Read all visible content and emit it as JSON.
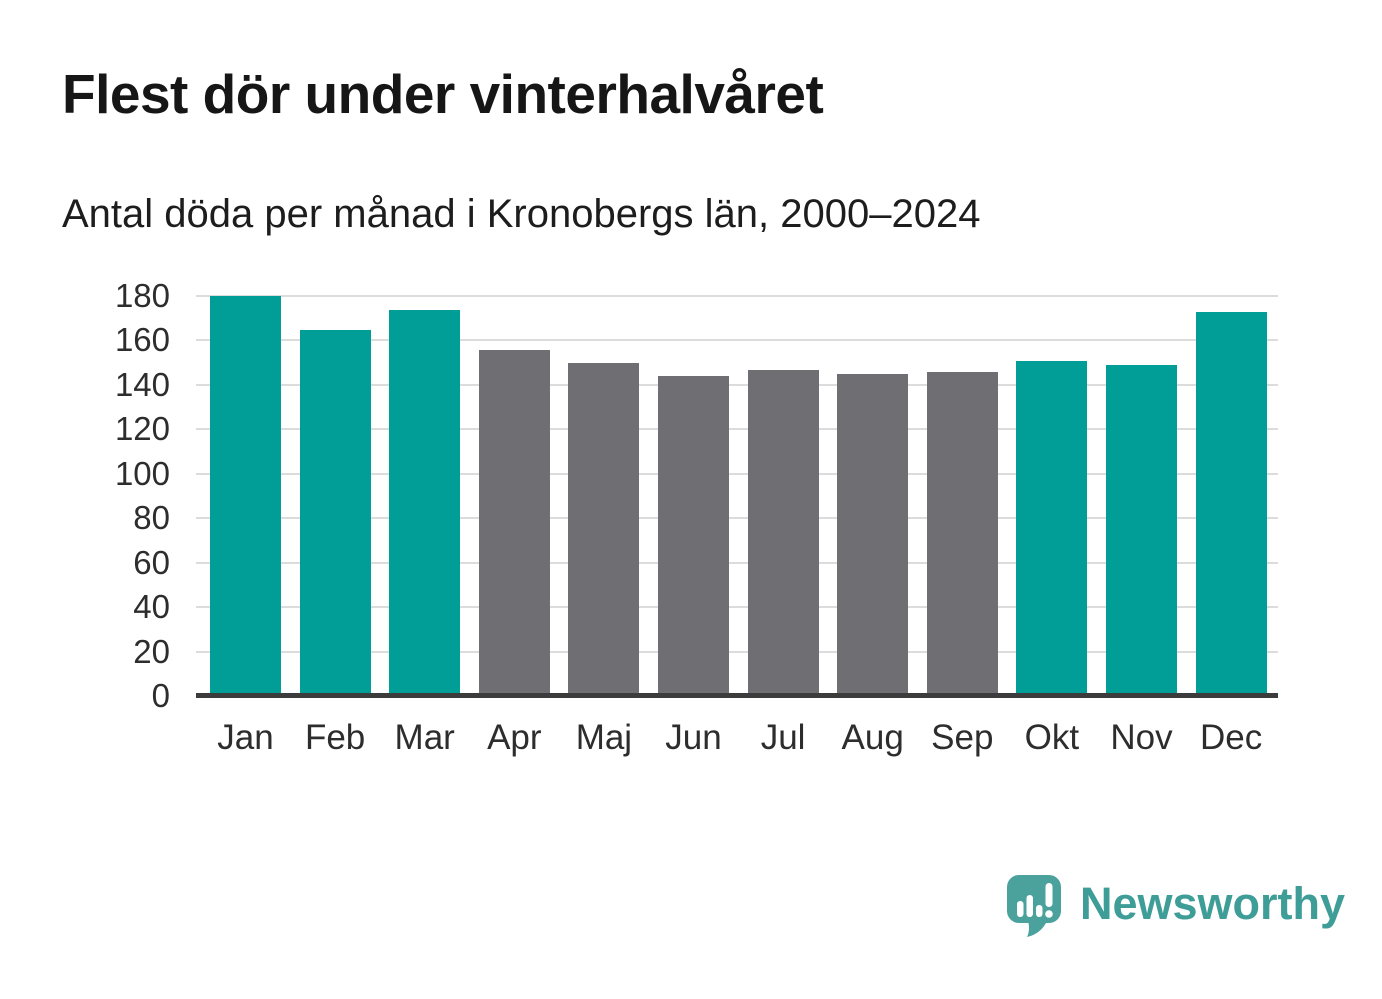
{
  "title": "Flest dör under vinterhalvåret",
  "subtitle": "Antal döda per månad i Kronobergs län, 2000–2024",
  "chart_data": {
    "type": "bar",
    "categories": [
      "Jan",
      "Feb",
      "Mar",
      "Apr",
      "Maj",
      "Jun",
      "Jul",
      "Aug",
      "Sep",
      "Okt",
      "Nov",
      "Dec"
    ],
    "values": [
      179,
      164,
      173,
      155,
      149,
      143,
      146,
      144,
      145,
      150,
      148,
      172
    ],
    "groups": [
      "winter",
      "winter",
      "winter",
      "summer",
      "summer",
      "summer",
      "summer",
      "summer",
      "summer",
      "winter",
      "winter",
      "winter"
    ],
    "group_colors": {
      "winter": "#009e97",
      "summer": "#6e6e73"
    },
    "title": "Flest dör under vinterhalvåret",
    "subtitle": "Antal döda per månad i Kronobergs län, 2000–2024",
    "xlabel": "",
    "ylabel": "",
    "ylim": [
      0,
      180
    ],
    "yticks": [
      0,
      20,
      40,
      60,
      80,
      100,
      120,
      140,
      160,
      180
    ],
    "grid": true,
    "gridline_color": "#dcdcdc",
    "axis_color": "#3c3c3c",
    "label_color": "#2d2d2d",
    "legend": "none"
  },
  "branding": {
    "name": "Newsworthy",
    "text_color": "#3f9d97",
    "icon_color": "#4ba29d"
  }
}
